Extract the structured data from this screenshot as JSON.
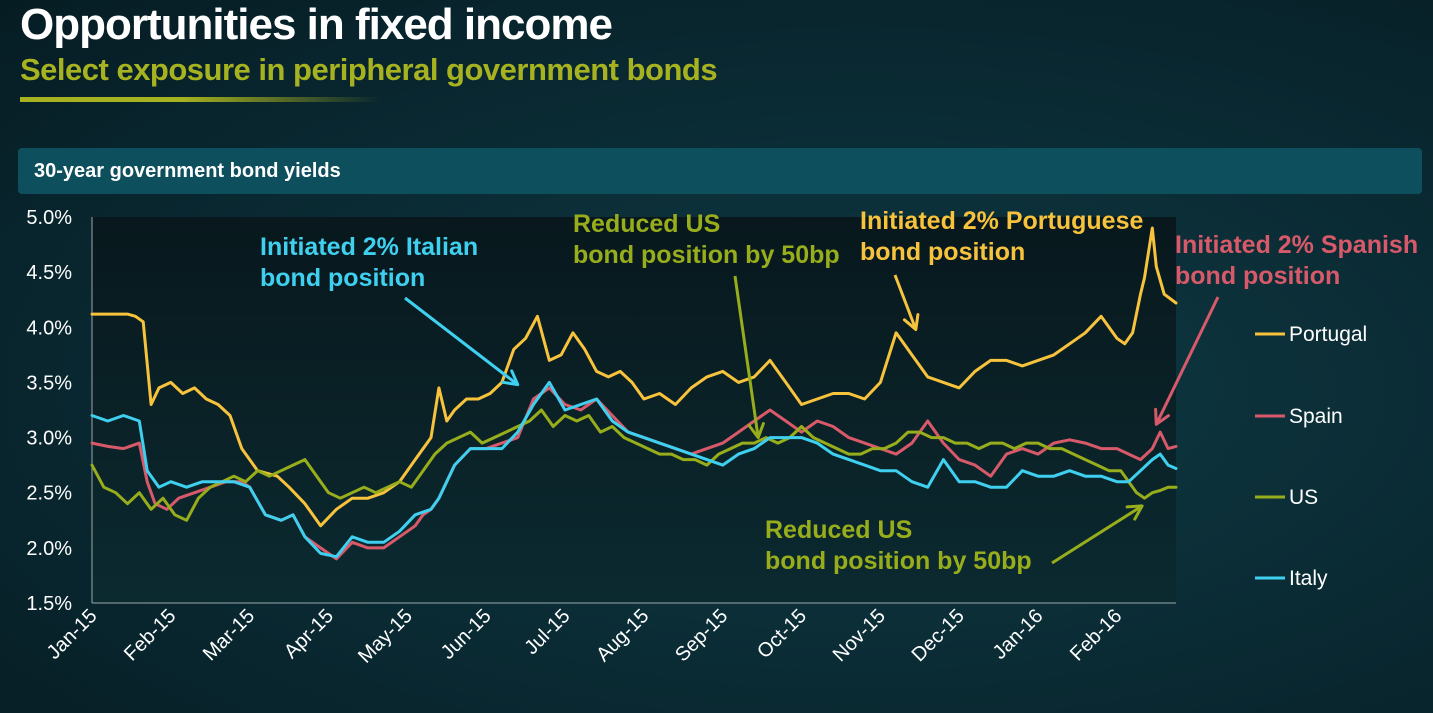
{
  "header": {
    "title": "Opportunities in fixed income",
    "subtitle": "Select exposure in peripheral government bonds"
  },
  "panel": {
    "title": "30-year government bond yields"
  },
  "colors": {
    "portugal": "#f7c23c",
    "spain": "#d85a6a",
    "us": "#98ad1b",
    "italy": "#3fd0f0",
    "accent": "#a6b21f"
  },
  "chart_data": {
    "type": "line",
    "title": "30-year government bond yields",
    "xlabel": "",
    "ylabel": "",
    "ylim": [
      1.5,
      5.0
    ],
    "xlim": [
      0,
      13.75
    ],
    "yticks": [
      1.5,
      2.0,
      2.5,
      3.0,
      3.5,
      4.0,
      4.5,
      5.0
    ],
    "ytick_labels": [
      "1.5%",
      "2.0%",
      "2.5%",
      "3.0%",
      "3.5%",
      "4.0%",
      "4.5%",
      "5.0%"
    ],
    "categories": [
      "Jan-15",
      "Feb-15",
      "Mar-15",
      "Apr-15",
      "May-15",
      "Jun-15",
      "Jul-15",
      "Aug-15",
      "Sep-15",
      "Oct-15",
      "Nov-15",
      "Dec-15",
      "Jan-16",
      "Feb-16"
    ],
    "legend_position": "right",
    "series": [
      {
        "name": "Portugal",
        "color": "#f7c23c",
        "x": [
          0,
          0.25,
          0.45,
          0.55,
          0.65,
          0.75,
          0.85,
          1.0,
          1.15,
          1.3,
          1.45,
          1.6,
          1.75,
          1.9,
          2.1,
          2.35,
          2.5,
          2.7,
          2.9,
          3.1,
          3.3,
          3.5,
          3.7,
          3.9,
          4.1,
          4.3,
          4.4,
          4.5,
          4.6,
          4.75,
          4.9,
          5.05,
          5.2,
          5.35,
          5.5,
          5.65,
          5.8,
          5.95,
          6.1,
          6.25,
          6.4,
          6.55,
          6.7,
          6.85,
          7.0,
          7.2,
          7.4,
          7.6,
          7.8,
          8.0,
          8.2,
          8.4,
          8.6,
          8.8,
          9.0,
          9.2,
          9.4,
          9.6,
          9.8,
          10.0,
          10.2,
          10.4,
          10.6,
          10.8,
          11.0,
          11.2,
          11.4,
          11.6,
          11.8,
          12.0,
          12.2,
          12.4,
          12.6,
          12.8,
          12.9,
          13.0,
          13.1,
          13.2,
          13.3,
          13.35,
          13.45,
          13.5,
          13.6,
          13.75
        ],
        "values": [
          4.12,
          4.12,
          4.12,
          4.1,
          4.05,
          3.3,
          3.45,
          3.5,
          3.4,
          3.45,
          3.35,
          3.3,
          3.2,
          2.9,
          2.7,
          2.65,
          2.55,
          2.4,
          2.2,
          2.35,
          2.45,
          2.45,
          2.5,
          2.6,
          2.8,
          3.0,
          3.45,
          3.15,
          3.25,
          3.35,
          3.35,
          3.4,
          3.5,
          3.8,
          3.9,
          4.1,
          3.7,
          3.75,
          3.95,
          3.8,
          3.6,
          3.55,
          3.6,
          3.5,
          3.35,
          3.4,
          3.3,
          3.45,
          3.55,
          3.6,
          3.5,
          3.55,
          3.7,
          3.5,
          3.3,
          3.35,
          3.4,
          3.4,
          3.35,
          3.5,
          3.95,
          3.75,
          3.55,
          3.5,
          3.45,
          3.6,
          3.7,
          3.7,
          3.65,
          3.7,
          3.75,
          3.85,
          3.95,
          4.1,
          4.0,
          3.9,
          3.85,
          3.95,
          4.3,
          4.45,
          4.9,
          4.55,
          4.3,
          4.22
        ]
      },
      {
        "name": "Spain",
        "color": "#d85a6a",
        "x": [
          0,
          0.2,
          0.4,
          0.6,
          0.7,
          0.8,
          0.95,
          1.1,
          1.3,
          1.5,
          1.7,
          1.9,
          2.0,
          2.2,
          2.4,
          2.55,
          2.7,
          2.9,
          3.1,
          3.3,
          3.5,
          3.7,
          3.9,
          4.1,
          4.2,
          4.3,
          4.4,
          4.6,
          4.8,
          5.0,
          5.2,
          5.4,
          5.6,
          5.8,
          6.0,
          6.2,
          6.4,
          6.6,
          6.8,
          7.0,
          7.2,
          7.4,
          7.6,
          7.8,
          8.0,
          8.2,
          8.4,
          8.6,
          8.8,
          9.0,
          9.2,
          9.4,
          9.6,
          9.8,
          10.0,
          10.2,
          10.4,
          10.6,
          10.8,
          11.0,
          11.2,
          11.4,
          11.6,
          11.8,
          12.0,
          12.2,
          12.4,
          12.6,
          12.8,
          13.0,
          13.15,
          13.3,
          13.45,
          13.55,
          13.65,
          13.75
        ],
        "values": [
          2.95,
          2.92,
          2.9,
          2.95,
          2.6,
          2.4,
          2.35,
          2.45,
          2.5,
          2.55,
          2.6,
          2.6,
          2.55,
          2.3,
          2.25,
          2.3,
          2.1,
          2.0,
          1.9,
          2.05,
          2.0,
          2.0,
          2.1,
          2.2,
          2.3,
          2.35,
          2.45,
          2.75,
          2.9,
          2.9,
          2.95,
          3.0,
          3.35,
          3.45,
          3.3,
          3.25,
          3.35,
          3.2,
          3.05,
          3.0,
          2.95,
          2.9,
          2.85,
          2.9,
          2.95,
          3.05,
          3.15,
          3.25,
          3.15,
          3.05,
          3.15,
          3.1,
          3.0,
          2.95,
          2.9,
          2.85,
          2.95,
          3.15,
          2.95,
          2.8,
          2.75,
          2.65,
          2.85,
          2.9,
          2.85,
          2.95,
          2.98,
          2.95,
          2.9,
          2.9,
          2.85,
          2.8,
          2.9,
          3.05,
          2.9,
          2.92
        ]
      },
      {
        "name": "US",
        "color": "#98ad1b",
        "x": [
          0,
          0.15,
          0.3,
          0.45,
          0.6,
          0.75,
          0.9,
          1.05,
          1.2,
          1.35,
          1.5,
          1.65,
          1.8,
          1.95,
          2.1,
          2.25,
          2.4,
          2.55,
          2.7,
          2.85,
          3.0,
          3.15,
          3.3,
          3.45,
          3.6,
          3.75,
          3.9,
          4.05,
          4.2,
          4.35,
          4.5,
          4.65,
          4.8,
          4.95,
          5.1,
          5.25,
          5.4,
          5.55,
          5.7,
          5.85,
          6.0,
          6.15,
          6.3,
          6.45,
          6.6,
          6.75,
          6.9,
          7.05,
          7.2,
          7.35,
          7.5,
          7.65,
          7.8,
          7.95,
          8.1,
          8.25,
          8.4,
          8.55,
          8.7,
          8.85,
          9.0,
          9.15,
          9.3,
          9.45,
          9.6,
          9.75,
          9.9,
          10.05,
          10.2,
          10.35,
          10.5,
          10.65,
          10.8,
          10.95,
          11.1,
          11.25,
          11.4,
          11.55,
          11.7,
          11.85,
          12.0,
          12.15,
          12.3,
          12.45,
          12.6,
          12.75,
          12.9,
          13.05,
          13.15,
          13.25,
          13.35,
          13.45,
          13.55,
          13.65,
          13.75
        ],
        "values": [
          2.75,
          2.55,
          2.5,
          2.4,
          2.5,
          2.35,
          2.45,
          2.3,
          2.25,
          2.45,
          2.55,
          2.6,
          2.65,
          2.6,
          2.7,
          2.65,
          2.7,
          2.75,
          2.8,
          2.65,
          2.5,
          2.45,
          2.5,
          2.55,
          2.5,
          2.55,
          2.6,
          2.55,
          2.7,
          2.85,
          2.95,
          3.0,
          3.05,
          2.95,
          3.0,
          3.05,
          3.1,
          3.15,
          3.25,
          3.1,
          3.2,
          3.15,
          3.2,
          3.05,
          3.1,
          3.0,
          2.95,
          2.9,
          2.85,
          2.85,
          2.8,
          2.8,
          2.75,
          2.85,
          2.9,
          2.95,
          2.95,
          3.0,
          2.95,
          3.0,
          3.1,
          3.0,
          2.95,
          2.9,
          2.85,
          2.85,
          2.9,
          2.9,
          2.95,
          3.05,
          3.05,
          3.0,
          3.0,
          2.95,
          2.95,
          2.9,
          2.95,
          2.95,
          2.9,
          2.95,
          2.95,
          2.9,
          2.9,
          2.85,
          2.8,
          2.75,
          2.7,
          2.7,
          2.6,
          2.5,
          2.45,
          2.5,
          2.52,
          2.55,
          2.55
        ]
      },
      {
        "name": "Italy",
        "color": "#3fd0f0",
        "x": [
          0,
          0.2,
          0.4,
          0.6,
          0.7,
          0.85,
          1.0,
          1.2,
          1.4,
          1.6,
          1.8,
          2.0,
          2.2,
          2.4,
          2.55,
          2.7,
          2.9,
          3.1,
          3.3,
          3.5,
          3.7,
          3.9,
          4.1,
          4.3,
          4.4,
          4.6,
          4.8,
          5.0,
          5.2,
          5.4,
          5.6,
          5.8,
          6.0,
          6.2,
          6.4,
          6.6,
          6.8,
          7.0,
          7.2,
          7.4,
          7.6,
          7.8,
          8.0,
          8.2,
          8.4,
          8.6,
          8.8,
          9.0,
          9.2,
          9.4,
          9.6,
          9.8,
          10.0,
          10.2,
          10.4,
          10.6,
          10.8,
          11.0,
          11.2,
          11.4,
          11.6,
          11.8,
          12.0,
          12.2,
          12.4,
          12.6,
          12.8,
          13.0,
          13.15,
          13.3,
          13.45,
          13.55,
          13.65,
          13.75
        ],
        "values": [
          3.2,
          3.15,
          3.2,
          3.15,
          2.7,
          2.55,
          2.6,
          2.55,
          2.6,
          2.6,
          2.6,
          2.55,
          2.3,
          2.25,
          2.3,
          2.1,
          1.95,
          1.92,
          2.1,
          2.05,
          2.05,
          2.15,
          2.3,
          2.35,
          2.45,
          2.75,
          2.9,
          2.9,
          2.9,
          3.05,
          3.3,
          3.5,
          3.25,
          3.3,
          3.35,
          3.15,
          3.05,
          3.0,
          2.95,
          2.9,
          2.85,
          2.8,
          2.75,
          2.85,
          2.9,
          3.0,
          3.0,
          3.0,
          2.95,
          2.85,
          2.8,
          2.75,
          2.7,
          2.7,
          2.6,
          2.55,
          2.8,
          2.6,
          2.6,
          2.55,
          2.55,
          2.7,
          2.65,
          2.65,
          2.7,
          2.65,
          2.65,
          2.6,
          2.6,
          2.7,
          2.8,
          2.85,
          2.75,
          2.72
        ]
      }
    ],
    "annotations": [
      {
        "lines": [
          "Initiated 2% Italian",
          "bond position"
        ],
        "color": "#3fd0f0",
        "target_x": 5.4,
        "target_y": 3.48
      },
      {
        "lines": [
          "Reduced US",
          "bond position by 50bp"
        ],
        "color": "#98ad1b",
        "target_x": 8.45,
        "target_y": 3.0
      },
      {
        "lines": [
          "Initiated 2% Portuguese",
          "bond position"
        ],
        "color": "#f7c23c",
        "target_x": 10.45,
        "target_y": 3.98
      },
      {
        "lines": [
          "Initiated 2% Spanish",
          "bond position"
        ],
        "color": "#d85a6a",
        "target_x": 13.5,
        "target_y": 3.12
      },
      {
        "lines": [
          "Reduced US",
          "bond position by 50bp"
        ],
        "color": "#98ad1b",
        "target_x": 13.32,
        "target_y": 2.38
      }
    ]
  }
}
